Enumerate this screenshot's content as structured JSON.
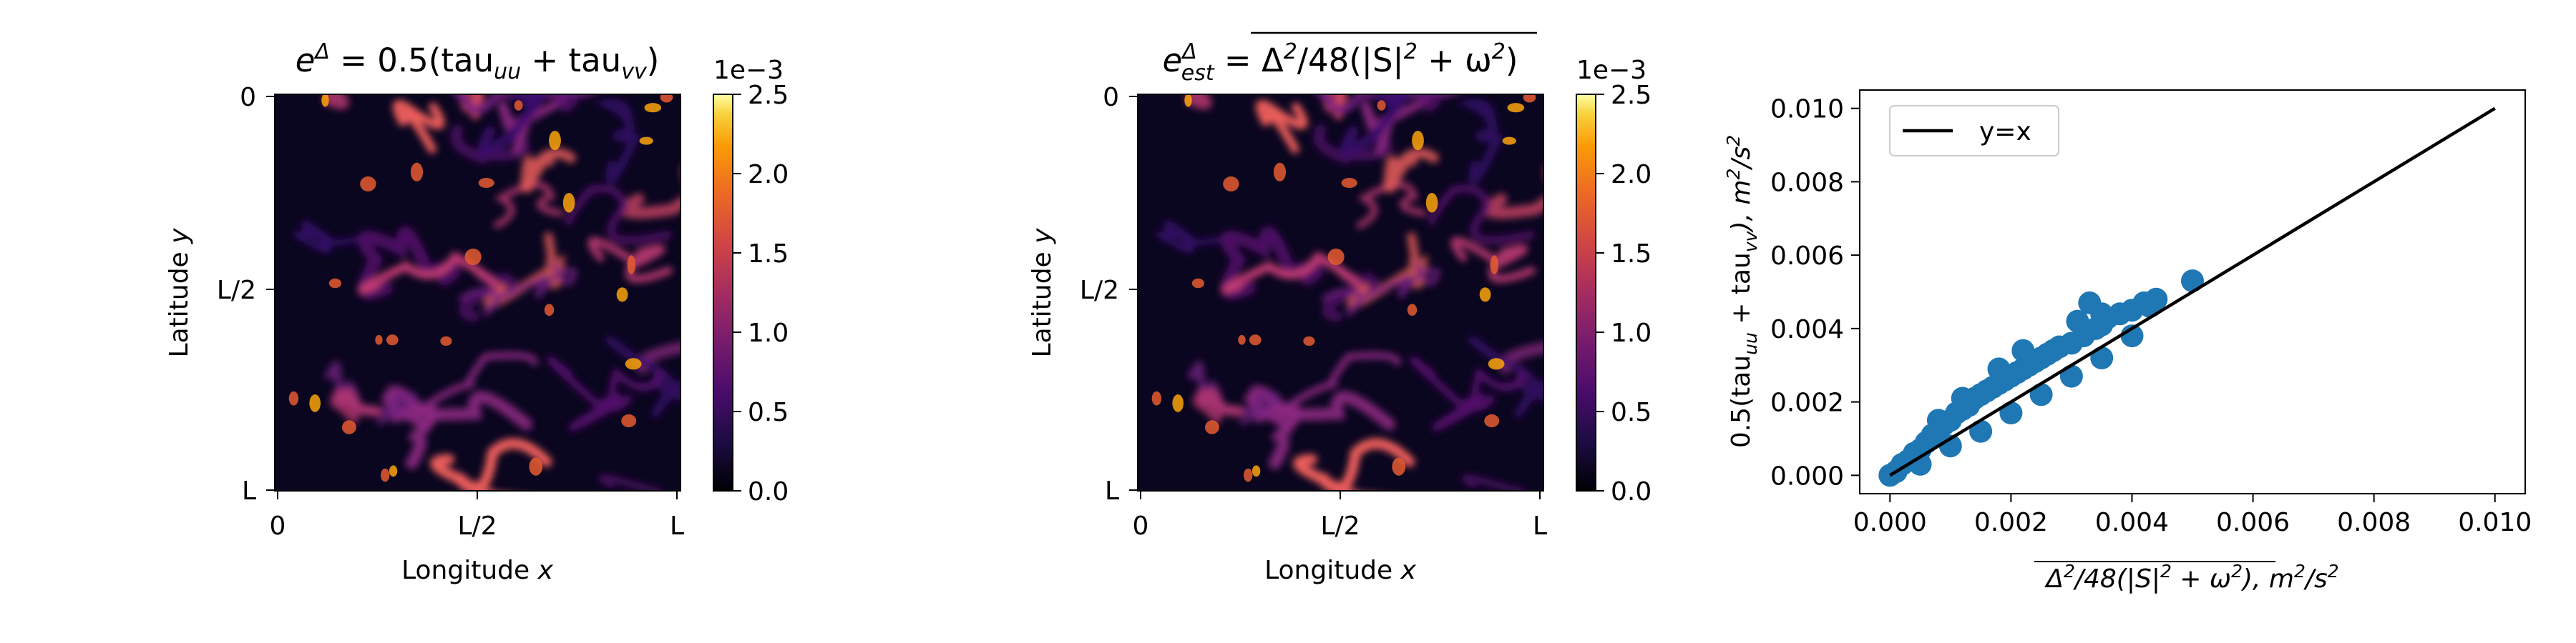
{
  "figure": {
    "panels": [
      {
        "xlabel": "Longitude",
        "xlabel_var": "x",
        "ylabel": "Latitude",
        "ylabel_var": "y",
        "xticks": [
          "0",
          "L/2",
          "L"
        ],
        "yticks": [
          "0",
          "L/2",
          "L"
        ],
        "colorbar": {
          "ticks": [
            "0.0",
            "0.5",
            "1.0",
            "1.5",
            "2.0",
            "2.5"
          ],
          "offset": "1e−3",
          "cmap": "inferno",
          "vmin": 0.0,
          "vmax": 2.5
        }
      },
      {
        "xlabel": "Longitude",
        "xlabel_var": "x",
        "ylabel": "Latitude",
        "ylabel_var": "y",
        "xticks": [
          "0",
          "L/2",
          "L"
        ],
        "yticks": [
          "0",
          "L/2",
          "L"
        ],
        "colorbar": {
          "ticks": [
            "0.0",
            "0.5",
            "1.0",
            "1.5",
            "2.0",
            "2.5"
          ],
          "offset": "1e−3",
          "cmap": "inferno",
          "vmin": 0.0,
          "vmax": 2.5
        }
      }
    ],
    "scatter": {
      "xticks": [
        "0.000",
        "0.002",
        "0.004",
        "0.006",
        "0.008",
        "0.010"
      ],
      "yticks": [
        "0.000",
        "0.002",
        "0.004",
        "0.006",
        "0.008",
        "0.010"
      ],
      "legend": "y=x",
      "point_color": "#1f77b4"
    }
  },
  "chart_data": [
    {
      "type": "heatmap",
      "title_parts": [
        "e",
        "Δ",
        " = 0.5(tau",
        "uu",
        " + tau",
        "vv",
        ")"
      ],
      "xlabel": "Longitude x",
      "ylabel": "Latitude y",
      "xticks": [
        "0",
        "L/2",
        "L"
      ],
      "yticks": [
        "0",
        "L/2",
        "L"
      ],
      "colorbar": {
        "min": 0.0,
        "max": 0.0025,
        "ticks": [
          0.0,
          0.5,
          1.0,
          1.5,
          2.0,
          2.5
        ],
        "scale_label": "1e−3",
        "cmap": "inferno"
      }
    },
    {
      "type": "heatmap",
      "title_parts": [
        "e",
        "Δ",
        "est",
        " = ",
        "Δ",
        "2",
        "/48(|S|",
        "2",
        " + ω",
        "2",
        ")"
      ],
      "xlabel": "Longitude x",
      "ylabel": "Latitude y",
      "xticks": [
        "0",
        "L/2",
        "L"
      ],
      "yticks": [
        "0",
        "L/2",
        "L"
      ],
      "colorbar": {
        "min": 0.0,
        "max": 0.0025,
        "ticks": [
          0.0,
          0.5,
          1.0,
          1.5,
          2.0,
          2.5
        ],
        "scale_label": "1e−3",
        "cmap": "inferno"
      }
    },
    {
      "type": "scatter",
      "xlabel_parts": [
        "Δ",
        "2",
        "/48(|S|",
        "2",
        " + ω",
        "2",
        "), m",
        "2",
        "/s",
        "2"
      ],
      "ylabel_parts": [
        "0.5(tau",
        "uu",
        " + tau",
        "vv",
        "), m",
        "2",
        "/s",
        "2"
      ],
      "xlim": [
        -0.0005,
        0.0105
      ],
      "ylim": [
        -0.0005,
        0.0105
      ],
      "xticks": [
        0.0,
        0.002,
        0.004,
        0.006,
        0.008,
        0.01
      ],
      "yticks": [
        0.0,
        0.002,
        0.004,
        0.006,
        0.008,
        0.01
      ],
      "legend": {
        "entries": [
          "y=x"
        ],
        "placement": "top-left"
      },
      "reference_line": {
        "name": "y=x",
        "x": [
          0.0,
          0.01
        ],
        "y": [
          0.0,
          0.01
        ]
      },
      "points": [
        [
          0.0,
          0.0
        ],
        [
          0.0001,
          0.0001
        ],
        [
          0.0002,
          0.0003
        ],
        [
          0.0003,
          0.0004
        ],
        [
          0.0004,
          0.0006
        ],
        [
          0.0005,
          0.0007
        ],
        [
          0.0006,
          0.0009
        ],
        [
          0.0007,
          0.0011
        ],
        [
          0.0008,
          0.0012
        ],
        [
          0.0009,
          0.0014
        ],
        [
          0.001,
          0.0015
        ],
        [
          0.0011,
          0.0017
        ],
        [
          0.0012,
          0.0018
        ],
        [
          0.0013,
          0.0019
        ],
        [
          0.0014,
          0.0021
        ],
        [
          0.0015,
          0.0022
        ],
        [
          0.0016,
          0.0023
        ],
        [
          0.0017,
          0.0024
        ],
        [
          0.0018,
          0.0025
        ],
        [
          0.0019,
          0.0026
        ],
        [
          0.002,
          0.0027
        ],
        [
          0.0021,
          0.0028
        ],
        [
          0.0022,
          0.0029
        ],
        [
          0.0023,
          0.003
        ],
        [
          0.0024,
          0.0031
        ],
        [
          0.0025,
          0.0032
        ],
        [
          0.0026,
          0.0033
        ],
        [
          0.0027,
          0.0034
        ],
        [
          0.0028,
          0.0035
        ],
        [
          0.003,
          0.0036
        ],
        [
          0.0032,
          0.0038
        ],
        [
          0.0034,
          0.004
        ],
        [
          0.0035,
          0.0041
        ],
        [
          0.0036,
          0.0043
        ],
        [
          0.0038,
          0.0044
        ],
        [
          0.004,
          0.0045
        ],
        [
          0.0042,
          0.0047
        ],
        [
          0.0043,
          0.0046
        ],
        [
          0.0044,
          0.0048
        ],
        [
          0.0033,
          0.0047
        ],
        [
          0.0035,
          0.0044
        ],
        [
          0.0031,
          0.0042
        ],
        [
          0.0005,
          0.0003
        ],
        [
          0.001,
          0.0008
        ],
        [
          0.0015,
          0.0012
        ],
        [
          0.002,
          0.0017
        ],
        [
          0.0025,
          0.0022
        ],
        [
          0.003,
          0.0027
        ],
        [
          0.0035,
          0.0032
        ],
        [
          0.004,
          0.0038
        ],
        [
          0.005,
          0.0053
        ],
        [
          0.0008,
          0.0015
        ],
        [
          0.0012,
          0.0021
        ],
        [
          0.0018,
          0.0029
        ],
        [
          0.0022,
          0.0034
        ]
      ]
    }
  ]
}
